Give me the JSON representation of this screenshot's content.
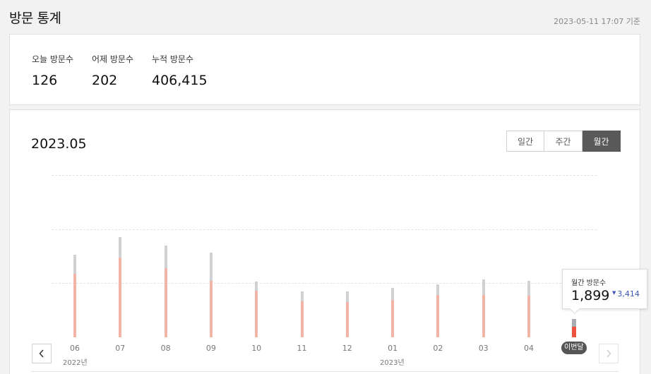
{
  "header": {
    "title": "방문 통계",
    "updated_at": "2023-05-11 17:07 기준"
  },
  "summary": {
    "today": {
      "label": "오늘 방문수",
      "value": "126"
    },
    "yesterday": {
      "label": "어제 방문수",
      "value": "202"
    },
    "total": {
      "label": "누적 방문수",
      "value": "406,415"
    }
  },
  "chart": {
    "period": "2023.05",
    "tabs": [
      {
        "label": "일간",
        "active": false
      },
      {
        "label": "주간",
        "active": false
      },
      {
        "label": "월간",
        "active": true
      }
    ],
    "current_badge": "이번달",
    "year_labels": {
      "start": "2022년",
      "end": "2023년"
    },
    "tooltip": {
      "label": "월간 방문수",
      "value": "1,899",
      "diff": "3,414",
      "diff_direction": "down"
    },
    "nav": {
      "prev_icon": "chevron-left-icon",
      "next_icon": "chevron-right-icon"
    },
    "colors": {
      "current": "#ee5340",
      "bar": "#f2b4a6",
      "previous": "#cfd1d3",
      "diff": "#3a57b5"
    }
  },
  "chart_data": {
    "type": "bar",
    "categories": [
      "06",
      "07",
      "08",
      "09",
      "10",
      "11",
      "12",
      "01",
      "02",
      "03",
      "04",
      "이번달"
    ],
    "series": [
      {
        "values": [
          11800,
          14800,
          12800,
          10500,
          8600,
          6700,
          6500,
          6900,
          7800,
          7800,
          7700,
          1899
        ]
      },
      {
        "values": [
          15200,
          18500,
          17000,
          15700,
          10300,
          8500,
          8500,
          9100,
          9800,
          10700,
          10500,
          3414
        ]
      }
    ],
    "ylim": [
      0,
      30000
    ],
    "grid": true
  }
}
